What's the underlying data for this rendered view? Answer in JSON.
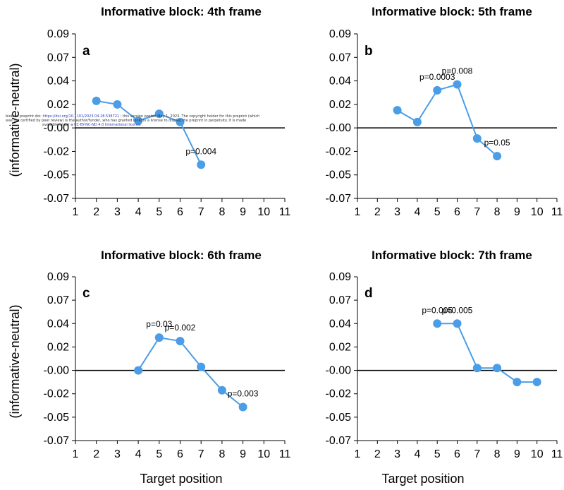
{
  "figure": {
    "ylabel_partial": "(informative-neutral)",
    "xlabel": "Target position",
    "preprint_notice": {
      "line1_prefix": "bioRxiv preprint doi:",
      "line1_link": "https://doi.org/10.1101/2023.04.28.538721",
      "line1_suffix": "; this version posted May 1, 2023. The copyright holder for this preprint (which",
      "line2": "was not certified by peer review) is the author/funder, who has granted bioRxiv a license to display the preprint in perpetuity. It is made",
      "line3_prefix": "available under a",
      "line3_link": "CC-BY-NC-ND 4.0 International license",
      "line3_suffix": "."
    }
  },
  "chart_data": [
    {
      "type": "line",
      "panel": "a",
      "title": "Informative block: 4th frame",
      "xlabel": "",
      "ylabel": "(informative-neutral)",
      "x_ticks": [
        1,
        2,
        3,
        4,
        5,
        6,
        7,
        8,
        9,
        10,
        11
      ],
      "y_ticks": [
        "0.09",
        "0.07",
        "0.04",
        "0.02",
        "-0.00",
        "-0.02",
        "-0.05",
        "-0.07"
      ],
      "ylim": [
        -0.07,
        0.09
      ],
      "series": [
        {
          "name": "a",
          "x": [
            2,
            3,
            4,
            5,
            6,
            7
          ],
          "y": [
            0.023,
            0.02,
            0.006,
            0.012,
            0.005,
            -0.037
          ]
        }
      ],
      "annotations": [
        {
          "x": 7,
          "y": -0.037,
          "text": "p=0.004"
        }
      ],
      "zero_line": true,
      "color": "#4a9de6"
    },
    {
      "type": "line",
      "panel": "b",
      "title": "Informative block: 5th frame",
      "xlabel": "",
      "ylabel": "",
      "x_ticks": [
        1,
        2,
        3,
        4,
        5,
        6,
        7,
        8,
        9,
        10,
        11
      ],
      "y_ticks": [
        "0.09",
        "0.07",
        "0.04",
        "0.02",
        "-0.00",
        "-0.02",
        "-0.05",
        "-0.07"
      ],
      "ylim": [
        -0.07,
        0.09
      ],
      "series": [
        {
          "name": "b",
          "x": [
            3,
            4,
            5,
            6,
            7,
            8
          ],
          "y": [
            0.015,
            0.005,
            0.032,
            0.037,
            -0.009,
            -0.026
          ]
        }
      ],
      "annotations": [
        {
          "x": 5,
          "y": 0.032,
          "text": "p=0.0003"
        },
        {
          "x": 6,
          "y": 0.037,
          "text": "p=0.008"
        },
        {
          "x": 8,
          "y": -0.026,
          "text": "p=0.05"
        }
      ],
      "zero_line": true,
      "color": "#4a9de6"
    },
    {
      "type": "line",
      "panel": "c",
      "title": "Informative block: 6th frame",
      "xlabel": "Target position",
      "ylabel": "(informative-neutral)",
      "x_ticks": [
        1,
        2,
        3,
        4,
        5,
        6,
        7,
        8,
        9,
        10,
        11
      ],
      "y_ticks": [
        "0.09",
        "0.07",
        "0.04",
        "0.02",
        "-0.00",
        "-0.02",
        "-0.05",
        "-0.07"
      ],
      "ylim": [
        -0.07,
        0.09
      ],
      "series": [
        {
          "name": "c",
          "x": [
            4,
            5,
            6,
            7,
            8,
            9
          ],
          "y": [
            0.0,
            0.028,
            0.025,
            0.003,
            -0.017,
            -0.037
          ]
        }
      ],
      "annotations": [
        {
          "x": 5,
          "y": 0.028,
          "text": "p=0.03"
        },
        {
          "x": 6,
          "y": 0.025,
          "text": "p=0.002"
        },
        {
          "x": 9,
          "y": -0.037,
          "text": "p=0.003"
        }
      ],
      "zero_line": true,
      "color": "#4a9de6"
    },
    {
      "type": "line",
      "panel": "d",
      "title": "Informative block: 7th frame",
      "xlabel": "Target position",
      "ylabel": "",
      "x_ticks": [
        1,
        2,
        3,
        4,
        5,
        6,
        7,
        8,
        9,
        10,
        11
      ],
      "y_ticks": [
        "0.09",
        "0.07",
        "0.04",
        "0.02",
        "-0.00",
        "-0.02",
        "-0.05",
        "-0.07"
      ],
      "ylim": [
        -0.07,
        0.09
      ],
      "series": [
        {
          "name": "d",
          "x": [
            5,
            6,
            7,
            8,
            9,
            10
          ],
          "y": [
            0.04,
            0.04,
            0.002,
            0.002,
            -0.01,
            -0.01
          ]
        }
      ],
      "annotations": [
        {
          "x": 5,
          "y": 0.04,
          "text": "p=0.005"
        },
        {
          "x": 6,
          "y": 0.04,
          "text": "p=0.005"
        }
      ],
      "zero_line": true,
      "color": "#4a9de6"
    }
  ]
}
